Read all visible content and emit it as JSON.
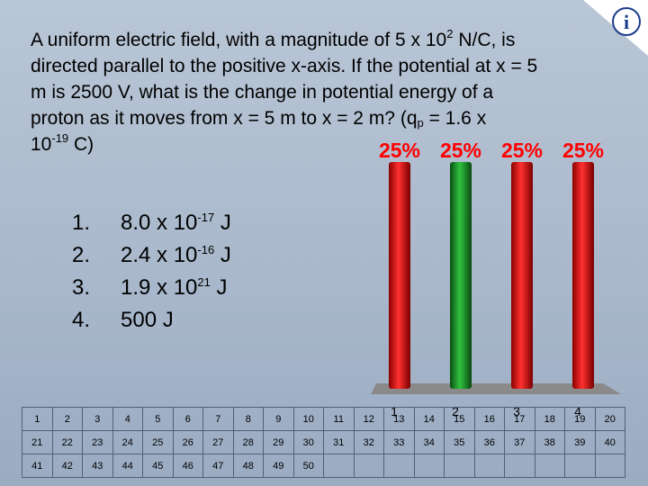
{
  "question": {
    "line1_pre": "A uniform electric field, with a magnitude of 5 x 10",
    "line1_sup": "2",
    "line1_post": "  N/C, is",
    "line2": "directed parallel to the positive x-axis. If the potential at x = 5",
    "line3": "m is 2500 V, what is the change in potential energy of a",
    "line4_pre": "proton as it moves from x = 5 m to x = 2 m? (q",
    "line4_sub": "p",
    "line4_post": "  = 1.6 x",
    "line5_pre": "10",
    "line5_sup": "-19",
    "line5_post": " C)"
  },
  "answers": [
    {
      "num": "1.",
      "pre": "8.0 x 10",
      "sup": "-17",
      "post": " J"
    },
    {
      "num": "2.",
      "pre": "2.4 x 10",
      "sup": "-16",
      "post": " J"
    },
    {
      "num": "3.",
      "pre": "1.9 x 10",
      "sup": "21",
      "post": " J"
    },
    {
      "num": "4.",
      "pre": "500 J",
      "sup": "",
      "post": ""
    }
  ],
  "chart_data": {
    "type": "bar",
    "categories": [
      "1",
      "2",
      "3",
      "4"
    ],
    "values": [
      25,
      25,
      25,
      25
    ],
    "value_labels": [
      "25%",
      "25%",
      "25%",
      "25%"
    ],
    "colors": [
      "#e11b1b",
      "#1a9a2a",
      "#e11b1b",
      "#e11b1b"
    ],
    "ylim": [
      0,
      100
    ]
  },
  "response_grid": {
    "rows": [
      [
        "1",
        "2",
        "3",
        "4",
        "5",
        "6",
        "7",
        "8",
        "9",
        "10",
        "11",
        "12",
        "13",
        "14",
        "15",
        "16",
        "17",
        "18",
        "19",
        "20"
      ],
      [
        "21",
        "22",
        "23",
        "24",
        "25",
        "26",
        "27",
        "28",
        "29",
        "30",
        "31",
        "32",
        "33",
        "34",
        "35",
        "36",
        "37",
        "38",
        "39",
        "40"
      ],
      [
        "41",
        "42",
        "43",
        "44",
        "45",
        "46",
        "47",
        "48",
        "49",
        "50",
        "",
        "",
        "",
        "",
        "",
        "",
        "",
        "",
        "",
        ""
      ]
    ]
  },
  "colors": {
    "background": "#a8b8cc",
    "percent_text": "#ff0000",
    "bar_red": "#e11b1b",
    "bar_green": "#1a9a2a"
  },
  "icons": {
    "corner_logo": "turning-point-logo-icon"
  }
}
